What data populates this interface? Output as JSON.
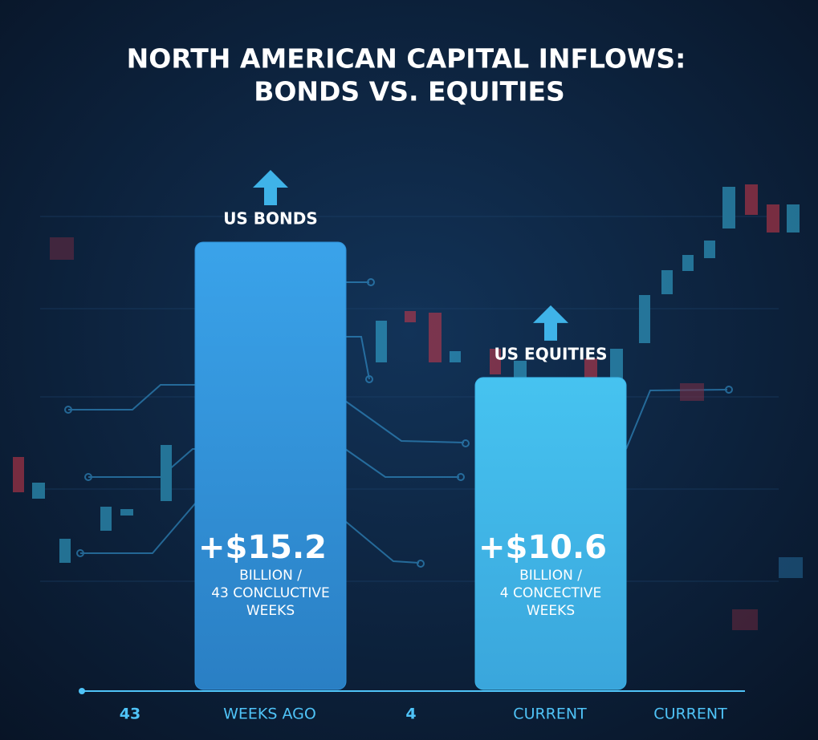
{
  "chart_data": {
    "type": "bar",
    "title": [
      "NORTH AMERICAN CAPITAL INFLOWS:",
      "BONDS VS. EQUITIES"
    ],
    "categories": [
      "US BONDS",
      "US EQUITIES"
    ],
    "values": [
      15.2,
      10.6
    ],
    "value_labels": [
      "+$15.2",
      "+$10.6"
    ],
    "bar_notes": [
      [
        "BILLION /",
        "43 CONCLUCTIVE",
        "WEEKS"
      ],
      [
        "BILLION /",
        "4 CONCECTIVE",
        "WEEKS"
      ]
    ],
    "colors": [
      "#2f8fd6",
      "#3bb2e6"
    ],
    "axis_labels": [
      "43",
      "WEEKS AGO",
      "4",
      "CURRENT",
      "CURRENT"
    ]
  }
}
